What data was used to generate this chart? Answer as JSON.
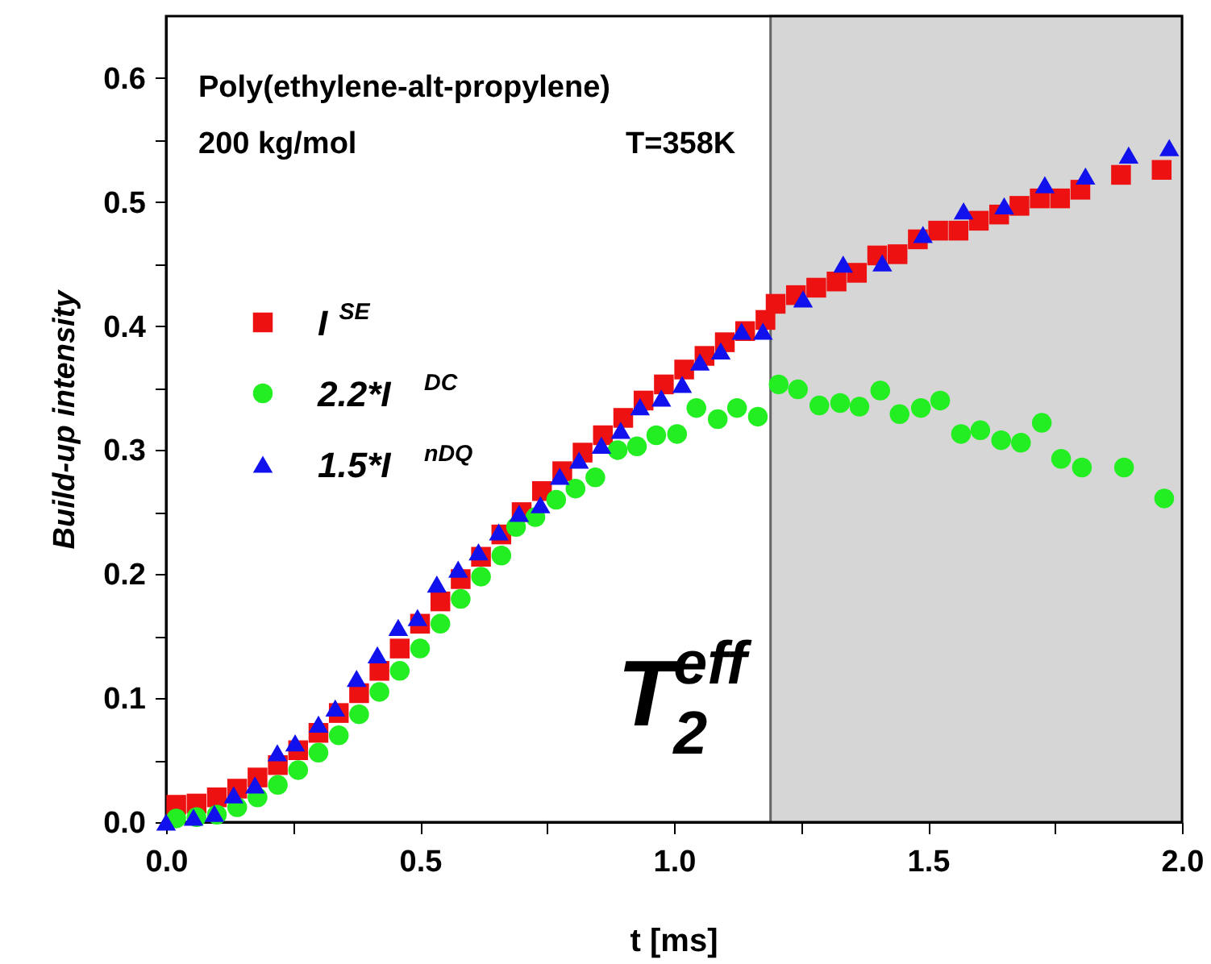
{
  "chart_data": {
    "type": "scatter",
    "xlabel": "t [ms]",
    "ylabel": "Build-up intensity",
    "xlim": [
      0,
      2.0
    ],
    "ylim": [
      0,
      0.65
    ],
    "xticks": [
      {
        "value": 0,
        "label": "0.0"
      },
      {
        "value": 0.25,
        "label": null
      },
      {
        "value": 0.5,
        "label": "0.5"
      },
      {
        "value": 0.75,
        "label": null
      },
      {
        "value": 1.0,
        "label": "1.0"
      },
      {
        "value": 1.25,
        "label": null
      },
      {
        "value": 1.5,
        "label": "1.5"
      },
      {
        "value": 1.75,
        "label": null
      },
      {
        "value": 2.0,
        "label": "2.0"
      }
    ],
    "yticks": [
      {
        "value": 0,
        "label": "0.0"
      },
      {
        "value": 0.05,
        "label": null
      },
      {
        "value": 0.1,
        "label": "0.1"
      },
      {
        "value": 0.15,
        "label": null
      },
      {
        "value": 0.2,
        "label": "0.2"
      },
      {
        "value": 0.25,
        "label": null
      },
      {
        "value": 0.3,
        "label": "0.3"
      },
      {
        "value": 0.35,
        "label": null
      },
      {
        "value": 0.4,
        "label": "0.4"
      },
      {
        "value": 0.45,
        "label": null
      },
      {
        "value": 0.5,
        "label": "0.5"
      },
      {
        "value": 0.55,
        "label": null
      },
      {
        "value": 0.6,
        "label": "0.6"
      }
    ],
    "grid": false,
    "legend": "left",
    "series": [
      {
        "name": "I$^{SE}$",
        "color": "#ee1111",
        "marker": "square",
        "x": [
          0.02,
          0.06,
          0.1,
          0.14,
          0.18,
          0.22,
          0.26,
          0.3,
          0.34,
          0.38,
          0.42,
          0.46,
          0.5,
          0.54,
          0.58,
          0.62,
          0.66,
          0.7,
          0.74,
          0.78,
          0.82,
          0.86,
          0.9,
          0.94,
          0.98,
          1.02,
          1.06,
          1.1,
          1.14,
          1.18,
          1.2,
          1.24,
          1.28,
          1.32,
          1.36,
          1.4,
          1.44,
          1.48,
          1.52,
          1.56,
          1.6,
          1.64,
          1.68,
          1.72,
          1.76,
          1.8,
          1.88,
          1.96
        ],
        "values": [
          0.014,
          0.015,
          0.02,
          0.027,
          0.036,
          0.046,
          0.058,
          0.072,
          0.088,
          0.104,
          0.122,
          0.14,
          0.16,
          0.178,
          0.196,
          0.214,
          0.232,
          0.25,
          0.267,
          0.283,
          0.298,
          0.312,
          0.326,
          0.34,
          0.353,
          0.365,
          0.376,
          0.387,
          0.396,
          0.405,
          0.418,
          0.425,
          0.431,
          0.436,
          0.443,
          0.457,
          0.458,
          0.47,
          0.477,
          0.477,
          0.485,
          0.49,
          0.497,
          0.503,
          0.503,
          0.51,
          0.522,
          0.526
        ]
      },
      {
        "name": "2.2*I$^{DC}$",
        "color": "#22ee22",
        "marker": "circle",
        "x": [
          0.02,
          0.06,
          0.1,
          0.14,
          0.18,
          0.22,
          0.26,
          0.3,
          0.34,
          0.38,
          0.42,
          0.46,
          0.5,
          0.54,
          0.58,
          0.62,
          0.66,
          0.689,
          0.727,
          0.768,
          0.806,
          0.845,
          0.889,
          0.927,
          0.965,
          1.006,
          1.044,
          1.086,
          1.124,
          1.165,
          1.206,
          1.244,
          1.286,
          1.327,
          1.365,
          1.406,
          1.444,
          1.486,
          1.524,
          1.565,
          1.603,
          1.644,
          1.683,
          1.724,
          1.762,
          1.803,
          1.886,
          1.965
        ],
        "values": [
          0.003,
          0.004,
          0.006,
          0.012,
          0.02,
          0.03,
          0.042,
          0.056,
          0.07,
          0.087,
          0.105,
          0.122,
          0.14,
          0.16,
          0.18,
          0.198,
          0.215,
          0.238,
          0.246,
          0.26,
          0.269,
          0.278,
          0.3,
          0.303,
          0.312,
          0.313,
          0.334,
          0.325,
          0.334,
          0.327,
          0.353,
          0.349,
          0.336,
          0.338,
          0.335,
          0.348,
          0.329,
          0.334,
          0.34,
          0.313,
          0.316,
          0.308,
          0.306,
          0.322,
          0.293,
          0.286,
          0.286,
          0.261
        ]
      },
      {
        "name": "1.5*I$^{nDQ}$",
        "color": "#1111ee",
        "marker": "triangle",
        "x": [
          0.0,
          0.054,
          0.095,
          0.133,
          0.175,
          0.219,
          0.254,
          0.3,
          0.333,
          0.375,
          0.416,
          0.457,
          0.495,
          0.533,
          0.575,
          0.615,
          0.655,
          0.695,
          0.737,
          0.775,
          0.813,
          0.857,
          0.895,
          0.933,
          0.975,
          1.016,
          1.051,
          1.092,
          1.133,
          1.175,
          1.254,
          1.333,
          1.41,
          1.49,
          1.57,
          1.65,
          1.73,
          1.81,
          1.895,
          1.975
        ],
        "values": [
          0.0,
          0.004,
          0.007,
          0.022,
          0.03,
          0.056,
          0.064,
          0.079,
          0.092,
          0.116,
          0.135,
          0.157,
          0.165,
          0.192,
          0.204,
          0.218,
          0.234,
          0.249,
          0.256,
          0.279,
          0.292,
          0.304,
          0.316,
          0.335,
          0.342,
          0.353,
          0.371,
          0.38,
          0.396,
          0.396,
          0.422,
          0.45,
          0.451,
          0.474,
          0.493,
          0.497,
          0.514,
          0.521,
          0.538,
          0.544
        ]
      }
    ],
    "bands": [
      {
        "axis": "x",
        "from": 1.19,
        "to": 2.0,
        "label": "T$_{2}$$^{eff}$",
        "color": "#bbbbbb"
      }
    ],
    "annotations": [
      "Poly(ethylene-alt-propylene)",
      "200 kg/mol",
      "T=358K"
    ]
  }
}
